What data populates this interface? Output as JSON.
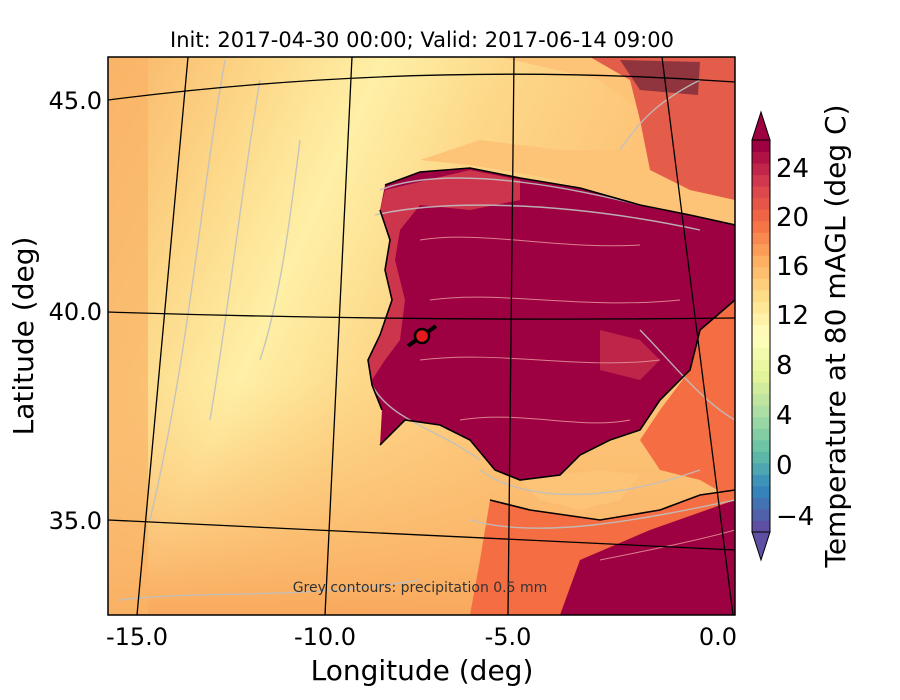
{
  "title": "Init: 2017-04-30 00:00; Valid: 2017-06-14 09:00",
  "annotation": "Grey contours: precipitation    0.5 mm",
  "xlabel": "Longitude (deg)",
  "ylabel": "Latitude (deg)",
  "colorbar_label": "Temperature at 80 mAGL (deg C)",
  "x_ticks": [
    "-15.0",
    "-10.0",
    "-5.0",
    "0.0"
  ],
  "y_ticks": [
    "35.0",
    "40.0",
    "45.0"
  ],
  "colorbar_ticks": [
    "−4",
    "0",
    "4",
    "8",
    "12",
    "16",
    "20",
    "24"
  ],
  "colors": {
    "ocean_warm": "#f9b467",
    "ocean_mild": "#fdd889",
    "ocean_cool": "#fef0a6",
    "land_hot": "#9e0142",
    "land_warm": "#d53e4f",
    "contour_grey": "#c0c0c0",
    "marker_red": "#e41a1c"
  },
  "chart_data": {
    "type": "heatmap",
    "variable": "Temperature at 80 mAGL (deg C)",
    "xlim": [
      -16,
      0
    ],
    "ylim": [
      32.8,
      46.2
    ],
    "colorbar_range": [
      -6,
      28
    ],
    "colorbar_extend": "both",
    "marker": {
      "lon": -7.6,
      "lat": 39.3
    }
  }
}
